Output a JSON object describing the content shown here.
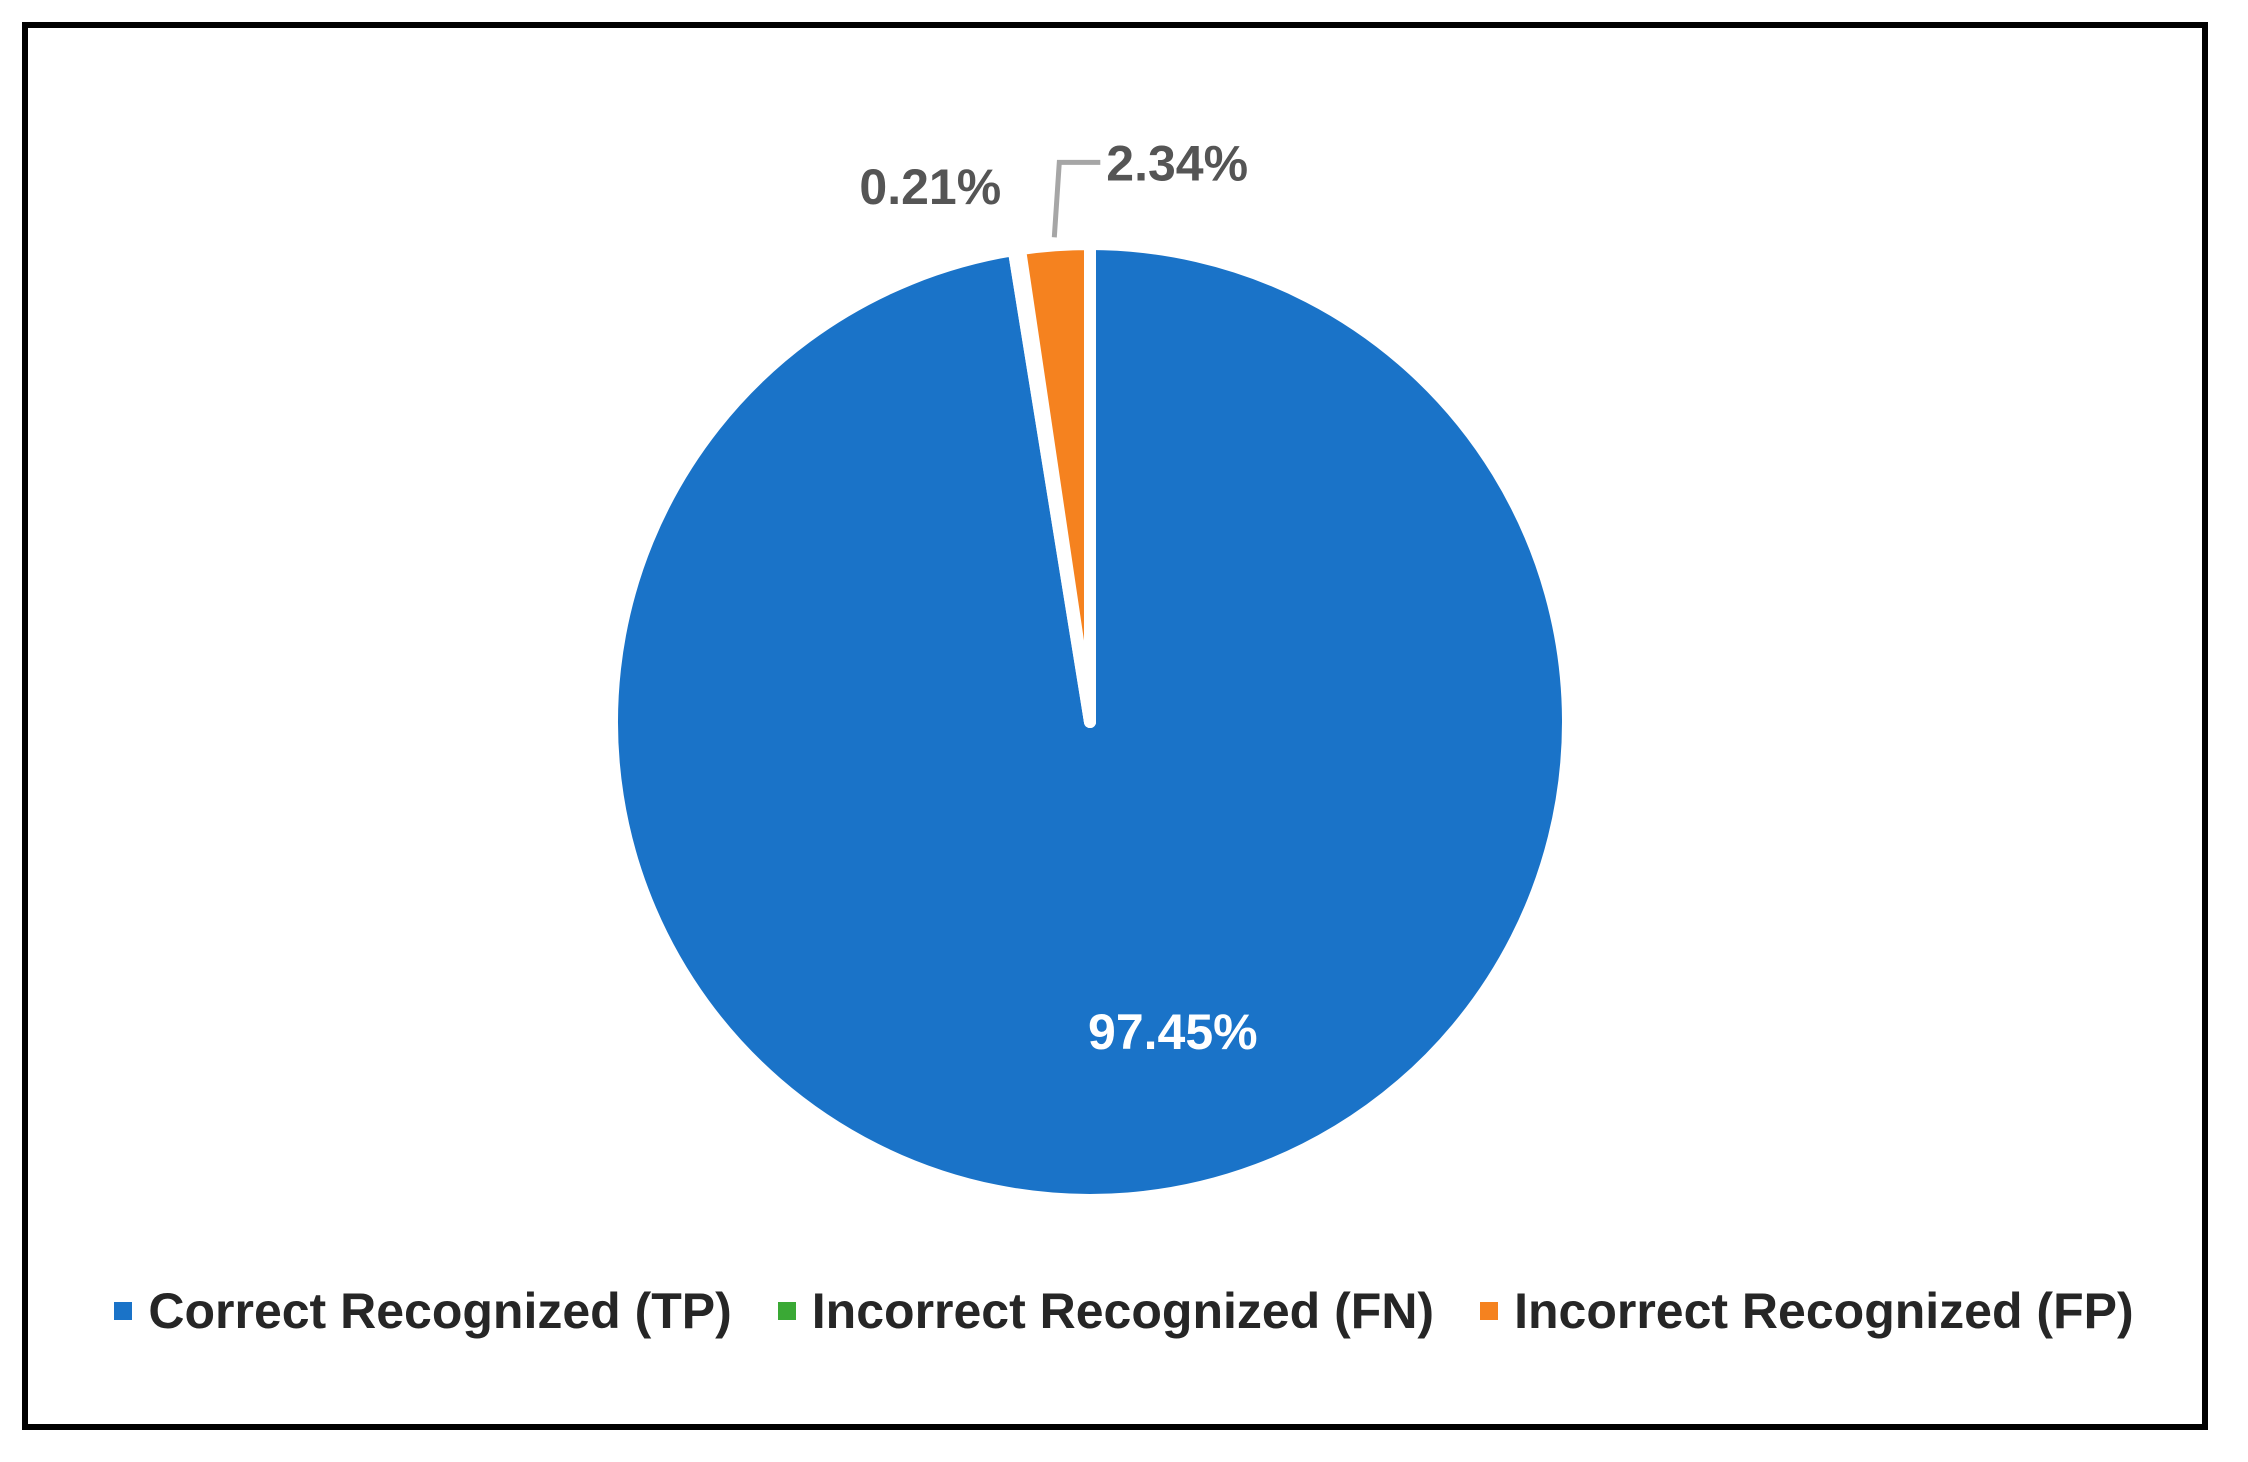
{
  "chart_data": {
    "type": "pie",
    "title": "",
    "start_angle_deg": 0,
    "direction": "clockwise",
    "slices": [
      {
        "name": "Correct Recognized (TP)",
        "value": 97.45,
        "label": "97.45%",
        "color": "#1a73c8",
        "label_color": "#ffffff"
      },
      {
        "name": "Incorrect Recognized (FN)",
        "value": 0.21,
        "label": "0.21%",
        "color": "#3aa935",
        "label_color": "#555555"
      },
      {
        "name": "Incorrect Recognized (FP)",
        "value": 2.34,
        "label": "2.34%",
        "color": "#f5821f",
        "label_color": "#555555"
      }
    ],
    "legend": {
      "placement": "bottom",
      "entries": [
        "Correct Recognized (TP)",
        "Incorrect Recognized (FN)",
        "Incorrect Recognized (FP)"
      ]
    }
  }
}
